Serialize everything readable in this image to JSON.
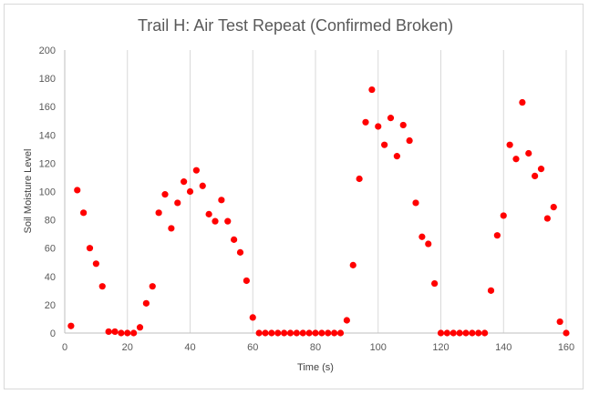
{
  "chart_data": {
    "type": "scatter",
    "title": "Trail H: Air Test Repeat (Confirmed Broken)",
    "xlabel": "Time (s)",
    "ylabel": "Soil Moisture Level",
    "xlim": [
      0,
      160
    ],
    "ylim": [
      0,
      200
    ],
    "xticks": [
      0,
      20,
      40,
      60,
      80,
      100,
      120,
      140,
      160
    ],
    "yticks": [
      0,
      20,
      40,
      60,
      80,
      100,
      120,
      140,
      160,
      180,
      200
    ],
    "grid": "vertical",
    "marker_color": "#ff0000",
    "series": [
      {
        "points": [
          [
            2,
            5
          ],
          [
            4,
            101
          ],
          [
            6,
            85
          ],
          [
            8,
            60
          ],
          [
            10,
            49
          ],
          [
            12,
            33
          ],
          [
            14,
            1
          ],
          [
            16,
            1
          ],
          [
            18,
            0
          ],
          [
            20,
            0
          ],
          [
            22,
            0
          ],
          [
            24,
            4
          ],
          [
            26,
            21
          ],
          [
            28,
            33
          ],
          [
            30,
            85
          ],
          [
            32,
            98
          ],
          [
            34,
            74
          ],
          [
            36,
            92
          ],
          [
            38,
            107
          ],
          [
            40,
            100
          ],
          [
            42,
            115
          ],
          [
            44,
            104
          ],
          [
            46,
            84
          ],
          [
            48,
            79
          ],
          [
            50,
            94
          ],
          [
            52,
            79
          ],
          [
            54,
            66
          ],
          [
            56,
            57
          ],
          [
            58,
            37
          ],
          [
            60,
            11
          ],
          [
            62,
            0
          ],
          [
            64,
            0
          ],
          [
            66,
            0
          ],
          [
            68,
            0
          ],
          [
            70,
            0
          ],
          [
            72,
            0
          ],
          [
            74,
            0
          ],
          [
            76,
            0
          ],
          [
            78,
            0
          ],
          [
            80,
            0
          ],
          [
            82,
            0
          ],
          [
            84,
            0
          ],
          [
            86,
            0
          ],
          [
            88,
            0
          ],
          [
            90,
            9
          ],
          [
            92,
            48
          ],
          [
            94,
            109
          ],
          [
            96,
            149
          ],
          [
            98,
            172
          ],
          [
            100,
            146
          ],
          [
            102,
            133
          ],
          [
            104,
            152
          ],
          [
            106,
            125
          ],
          [
            108,
            147
          ],
          [
            110,
            136
          ],
          [
            112,
            92
          ],
          [
            114,
            68
          ],
          [
            116,
            63
          ],
          [
            118,
            35
          ],
          [
            120,
            0
          ],
          [
            122,
            0
          ],
          [
            124,
            0
          ],
          [
            126,
            0
          ],
          [
            128,
            0
          ],
          [
            130,
            0
          ],
          [
            132,
            0
          ],
          [
            134,
            0
          ],
          [
            136,
            30
          ],
          [
            138,
            69
          ],
          [
            140,
            83
          ],
          [
            142,
            133
          ],
          [
            144,
            123
          ],
          [
            146,
            163
          ],
          [
            148,
            127
          ],
          [
            150,
            111
          ],
          [
            152,
            116
          ],
          [
            154,
            81
          ],
          [
            156,
            89
          ],
          [
            158,
            8
          ],
          [
            160,
            0
          ]
        ]
      }
    ]
  }
}
